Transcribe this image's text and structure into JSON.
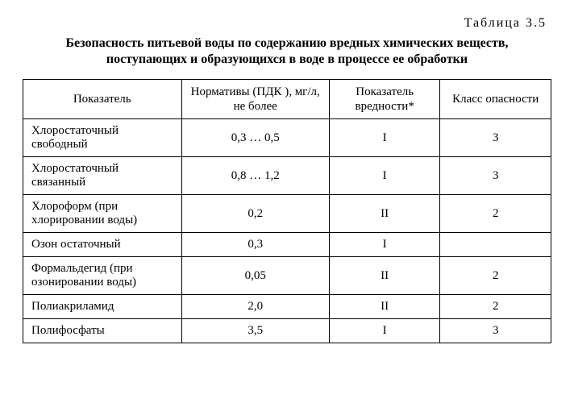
{
  "table_number": "Таблица 3.5",
  "caption": "Безопасность питьевой воды по содержанию вредных химических веществ, поступающих и образующихся в воде в процессе ее обработки",
  "columns": [
    "Показатель",
    "Нормативы (ПДК ), мг/л, не более",
    "Показатель вредности*",
    "Класс опасности"
  ],
  "rows": [
    {
      "indicator": "Хлоростаточный свободный",
      "norm": "0,3 … 0,5",
      "harm": "I",
      "hazard": "3"
    },
    {
      "indicator": "Хлоростаточный связанный",
      "norm": "0,8 … 1,2",
      "harm": "I",
      "hazard": "3"
    },
    {
      "indicator": "Хлороформ (при хлорировании воды)",
      "norm": "0,2",
      "harm": "II",
      "hazard": "2"
    },
    {
      "indicator": "Озон остаточный",
      "norm": "0,3",
      "harm": "I",
      "hazard": ""
    },
    {
      "indicator": "Формальдегид (при озонировании воды)",
      "norm": "0,05",
      "harm": "II",
      "hazard": "2"
    },
    {
      "indicator": "Полиакриламид",
      "norm": "2,0",
      "harm": "II",
      "hazard": "2"
    },
    {
      "indicator": "Полифосфаты",
      "norm": "3,5",
      "harm": "I",
      "hazard": "3"
    }
  ],
  "style": {
    "font_family": "Times New Roman",
    "body_fontsize_pt": 12,
    "caption_fontsize_pt": 12,
    "border_color": "#000000",
    "background": "#ffffff",
    "text_color": "#000000",
    "column_widths_pct": [
      30,
      28,
      21,
      21
    ],
    "row_align": {
      "indicator": "left",
      "norm": "center",
      "harm": "center",
      "hazard": "center"
    }
  }
}
